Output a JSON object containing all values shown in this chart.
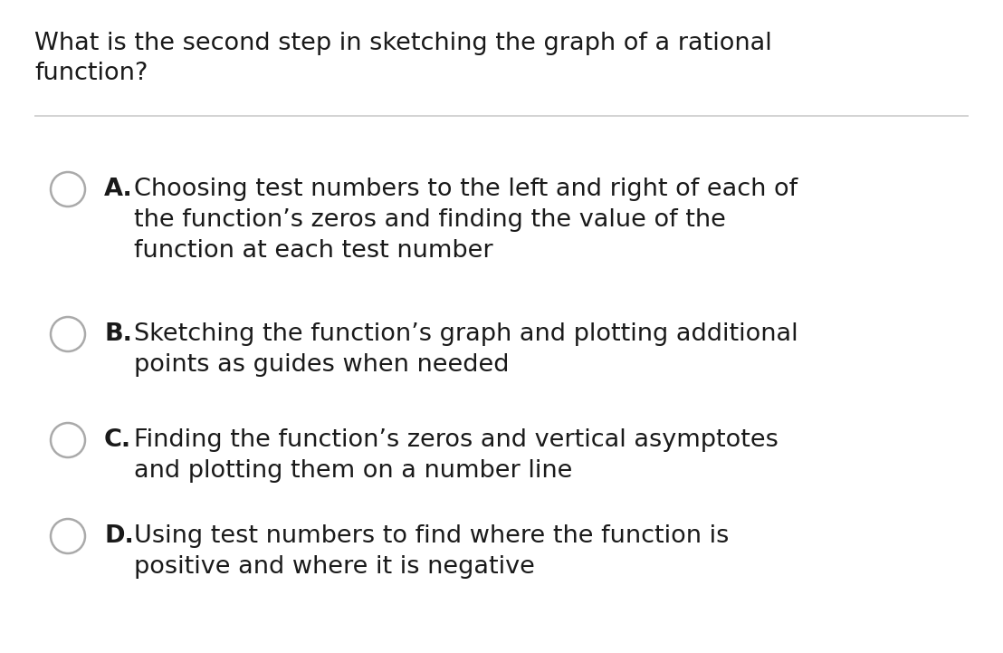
{
  "background_color": "#ffffff",
  "question_line1": "What is the second step in sketching the graph of a rational",
  "question_line2": "function?",
  "text_color": "#1a1a1a",
  "separator_color": "#cccccc",
  "circle_edge_color": "#aaaaaa",
  "circle_face_color": "#ffffff",
  "options": [
    {
      "letter": "A.",
      "lines": [
        "Choosing test numbers to the left and right of each of",
        "the function’s zeros and finding the value of the",
        "function at each test number"
      ]
    },
    {
      "letter": "B.",
      "lines": [
        "Sketching the function’s graph and plotting additional",
        "points as guides when needed"
      ]
    },
    {
      "letter": "C.",
      "lines": [
        "Finding the function’s zeros and vertical asymptotes",
        "and plotting them on a number line"
      ]
    },
    {
      "letter": "D.",
      "lines": [
        "Using test numbers to find where the function is",
        "positive and where it is negative"
      ]
    }
  ]
}
